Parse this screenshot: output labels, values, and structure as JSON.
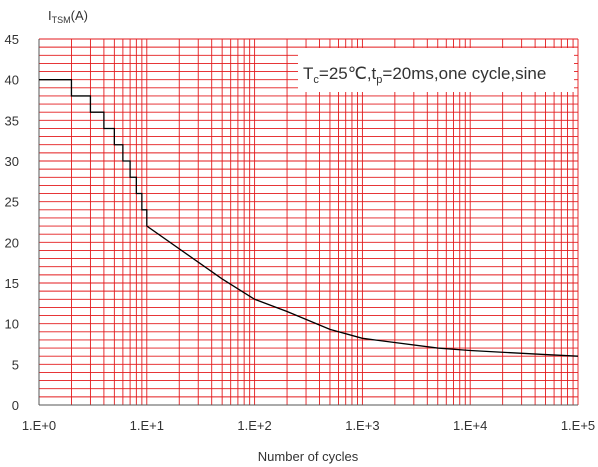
{
  "chart_data": {
    "type": "line",
    "title": "",
    "ylabel": {
      "main": "I",
      "sub": "TSM",
      "unit": "(A)"
    },
    "xlabel": "Number of cycles",
    "x_scale": "log",
    "xlim": [
      1,
      100000
    ],
    "ylim": [
      0,
      45
    ],
    "x_ticks": [
      {
        "value": 1,
        "label": "1.E+0"
      },
      {
        "value": 10,
        "label": "1.E+1"
      },
      {
        "value": 100,
        "label": "1.E+2"
      },
      {
        "value": 1000,
        "label": "1.E+3"
      },
      {
        "value": 10000,
        "label": "1.E+4"
      },
      {
        "value": 100000,
        "label": "1.E+5"
      }
    ],
    "y_ticks": [
      0,
      5,
      10,
      15,
      20,
      25,
      30,
      35,
      40,
      45
    ],
    "grid": {
      "major": true,
      "minor": true,
      "color": "#e31a1c"
    },
    "annotation": {
      "parts": [
        {
          "text": "T",
          "style": "normal"
        },
        {
          "text": "c",
          "style": "sub"
        },
        {
          "text": "=25℃,t",
          "style": "normal"
        },
        {
          "text": "p",
          "style": "sub"
        },
        {
          "text": "=20ms,one  cycle,sine",
          "style": "normal"
        }
      ],
      "placement": "top-right"
    },
    "series": [
      {
        "color": "#000000",
        "points": [
          [
            1,
            40
          ],
          [
            2,
            40
          ],
          [
            2,
            38
          ],
          [
            3,
            38
          ],
          [
            3,
            36
          ],
          [
            4,
            36
          ],
          [
            4,
            34
          ],
          [
            5,
            34
          ],
          [
            5,
            32
          ],
          [
            6,
            32
          ],
          [
            6,
            30
          ],
          [
            7,
            30
          ],
          [
            7,
            28
          ],
          [
            8,
            28
          ],
          [
            8,
            26
          ],
          [
            9,
            26
          ],
          [
            9,
            24
          ],
          [
            10,
            24
          ],
          [
            10,
            22
          ],
          [
            50,
            15.5
          ],
          [
            100,
            13
          ],
          [
            200,
            11.5
          ],
          [
            500,
            9.3
          ],
          [
            1000,
            8.2
          ],
          [
            5000,
            7
          ],
          [
            10000,
            6.7
          ],
          [
            50000,
            6.2
          ],
          [
            100000,
            6
          ]
        ]
      }
    ]
  }
}
